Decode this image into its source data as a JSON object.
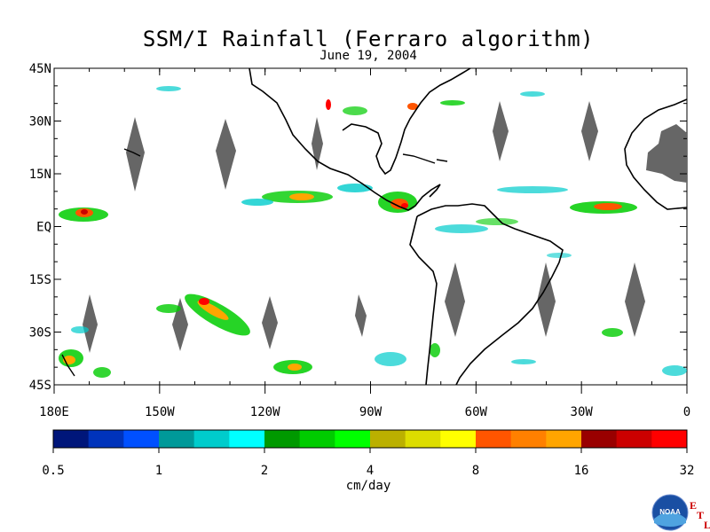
{
  "title": "SSM/I Rainfall (Ferraro algorithm)",
  "subtitle": "June 19, 2004",
  "map": {
    "lon_range": [
      180,
      360
    ],
    "lat_range": [
      -45,
      45
    ],
    "lat_ticks": [
      {
        "value": 45,
        "label": "45N"
      },
      {
        "value": 30,
        "label": "30N"
      },
      {
        "value": 15,
        "label": "15N"
      },
      {
        "value": 0,
        "label": "EQ"
      },
      {
        "value": -15,
        "label": "15S"
      },
      {
        "value": -30,
        "label": "30S"
      },
      {
        "value": -45,
        "label": "45S"
      }
    ],
    "lon_ticks": [
      {
        "value": 180,
        "label": "180E"
      },
      {
        "value": 210,
        "label": "150W"
      },
      {
        "value": 240,
        "label": "120W"
      },
      {
        "value": 270,
        "label": "90W"
      },
      {
        "value": 300,
        "label": "60W"
      },
      {
        "value": 330,
        "label": "30W"
      },
      {
        "value": 360,
        "label": "0"
      }
    ],
    "coastline_color": "#000000",
    "missing_data_color": "#666666"
  },
  "colorbar": {
    "unit": "cm/day",
    "colors": [
      "#00167a",
      "#0033bb",
      "#0050ff",
      "#009999",
      "#00cccc",
      "#00ffff",
      "#009900",
      "#00cc00",
      "#00ff00",
      "#bbb000",
      "#dddd00",
      "#ffff00",
      "#ff5500",
      "#ff8000",
      "#ffa500",
      "#990000",
      "#cc0000",
      "#ff0000"
    ],
    "tick_labels": [
      "0.5",
      "1",
      "2",
      "4",
      "8",
      "16",
      "32"
    ]
  },
  "logo": {
    "text": "NOAA",
    "etl": [
      "E",
      "T",
      "L"
    ]
  }
}
